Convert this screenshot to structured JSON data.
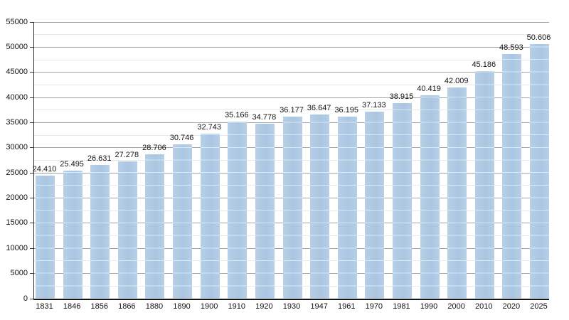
{
  "chart_data": {
    "type": "bar",
    "title": "",
    "xlabel": "",
    "ylabel": "",
    "categories": [
      "1831",
      "1846",
      "1856",
      "1866",
      "1880",
      "1890",
      "1900",
      "1910",
      "1920",
      "1930",
      "1947",
      "1961",
      "1970",
      "1981",
      "1990",
      "2000",
      "2010",
      "2020",
      "2025"
    ],
    "values": [
      24410,
      25495,
      26631,
      27278,
      28706,
      30746,
      32743,
      35166,
      34778,
      36177,
      36647,
      36195,
      37133,
      38915,
      40419,
      42009,
      45186,
      48593,
      50606
    ],
    "value_labels": [
      "24.410",
      "25.495",
      "26.631",
      "27.278",
      "28.706",
      "30.746",
      "32.743",
      "35.166",
      "34.778",
      "36.177",
      "36.647",
      "36.195",
      "37.133",
      "38.915",
      "40.419",
      "42.009",
      "45.186",
      "48.593",
      "50.606"
    ],
    "ylim": [
      0,
      55000
    ],
    "y_ticks": [
      "0",
      "5000",
      "10000",
      "15000",
      "20000",
      "25000",
      "30000",
      "35000",
      "40000",
      "45000",
      "50000",
      "55000"
    ],
    "y_major_step": 2500,
    "y_tick_step": 5000,
    "grid": "on",
    "minor_grid": "on",
    "legend": "none",
    "colors": {
      "bar_fill_left": "#b7cfe7",
      "bar_fill_right": "#aac6e2",
      "bar_inner_gridline": "rgba(255,255,255,0.55)",
      "major_gridline": "#a4a4a4",
      "minor_gridline": "#e9e9e9",
      "axis": "#2a2a2a",
      "text": "#141414",
      "background": "#ffffff"
    }
  }
}
